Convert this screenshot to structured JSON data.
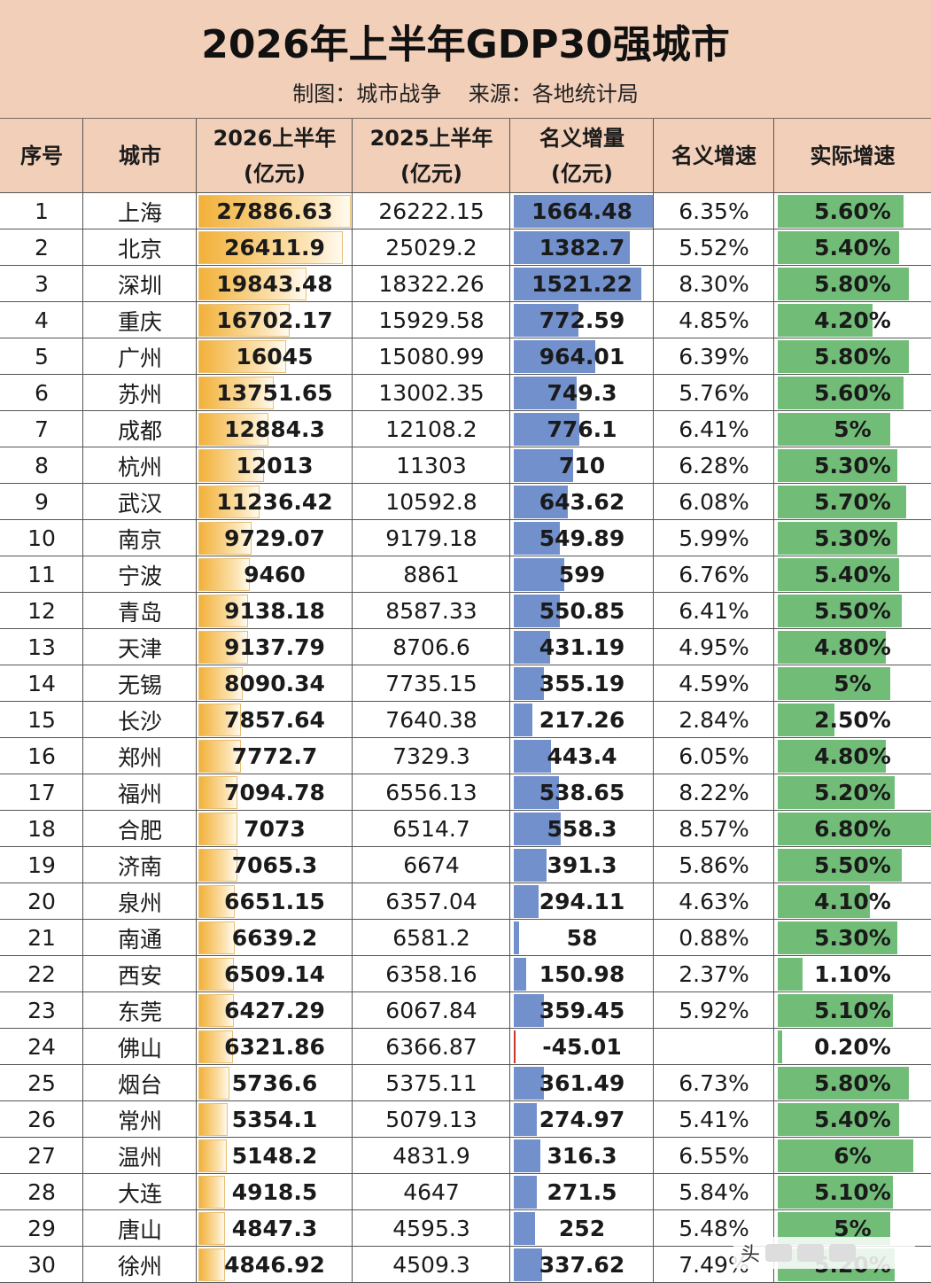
{
  "title": "2026年上半年GDP30强城市",
  "subtitle": "制图：城市战争    来源：各地统计局",
  "columns": [
    "序号",
    "城市",
    "2026上半年",
    "(亿元)",
    "2025上半年",
    "(亿元)",
    "名义增量",
    "(亿元)",
    "名义增速",
    "实际增速"
  ],
  "rows": [
    {
      "rank": "1",
      "city": "上海",
      "gdp2026": "27886.63",
      "gdp2025": "26222.15",
      "increase": "1664.48",
      "nominal": "6.35%",
      "real": "5.60%"
    },
    {
      "rank": "2",
      "city": "北京",
      "gdp2026": "26411.9",
      "gdp2025": "25029.2",
      "increase": "1382.7",
      "nominal": "5.52%",
      "real": "5.40%"
    },
    {
      "rank": "3",
      "city": "深圳",
      "gdp2026": "19843.48",
      "gdp2025": "18322.26",
      "increase": "1521.22",
      "nominal": "8.30%",
      "real": "5.80%"
    },
    {
      "rank": "4",
      "city": "重庆",
      "gdp2026": "16702.17",
      "gdp2025": "15929.58",
      "increase": "772.59",
      "nominal": "4.85%",
      "real": "4.20%"
    },
    {
      "rank": "5",
      "city": "广州",
      "gdp2026": "16045",
      "gdp2025": "15080.99",
      "increase": "964.01",
      "nominal": "6.39%",
      "real": "5.80%"
    },
    {
      "rank": "6",
      "city": "苏州",
      "gdp2026": "13751.65",
      "gdp2025": "13002.35",
      "increase": "749.3",
      "nominal": "5.76%",
      "real": "5.60%"
    },
    {
      "rank": "7",
      "city": "成都",
      "gdp2026": "12884.3",
      "gdp2025": "12108.2",
      "increase": "776.1",
      "nominal": "6.41%",
      "real": "5%"
    },
    {
      "rank": "8",
      "city": "杭州",
      "gdp2026": "12013",
      "gdp2025": "11303",
      "increase": "710",
      "nominal": "6.28%",
      "real": "5.30%"
    },
    {
      "rank": "9",
      "city": "武汉",
      "gdp2026": "11236.42",
      "gdp2025": "10592.8",
      "increase": "643.62",
      "nominal": "6.08%",
      "real": "5.70%"
    },
    {
      "rank": "10",
      "city": "南京",
      "gdp2026": "9729.07",
      "gdp2025": "9179.18",
      "increase": "549.89",
      "nominal": "5.99%",
      "real": "5.30%"
    },
    {
      "rank": "11",
      "city": "宁波",
      "gdp2026": "9460",
      "gdp2025": "8861",
      "increase": "599",
      "nominal": "6.76%",
      "real": "5.40%"
    },
    {
      "rank": "12",
      "city": "青岛",
      "gdp2026": "9138.18",
      "gdp2025": "8587.33",
      "increase": "550.85",
      "nominal": "6.41%",
      "real": "5.50%"
    },
    {
      "rank": "13",
      "city": "天津",
      "gdp2026": "9137.79",
      "gdp2025": "8706.6",
      "increase": "431.19",
      "nominal": "4.95%",
      "real": "4.80%"
    },
    {
      "rank": "14",
      "city": "无锡",
      "gdp2026": "8090.34",
      "gdp2025": "7735.15",
      "increase": "355.19",
      "nominal": "4.59%",
      "real": "5%"
    },
    {
      "rank": "15",
      "city": "长沙",
      "gdp2026": "7857.64",
      "gdp2025": "7640.38",
      "increase": "217.26",
      "nominal": "2.84%",
      "real": "2.50%"
    },
    {
      "rank": "16",
      "city": "郑州",
      "gdp2026": "7772.7",
      "gdp2025": "7329.3",
      "increase": "443.4",
      "nominal": "6.05%",
      "real": "4.80%"
    },
    {
      "rank": "17",
      "city": "福州",
      "gdp2026": "7094.78",
      "gdp2025": "6556.13",
      "increase": "538.65",
      "nominal": "8.22%",
      "real": "5.20%"
    },
    {
      "rank": "18",
      "city": "合肥",
      "gdp2026": "7073",
      "gdp2025": "6514.7",
      "increase": "558.3",
      "nominal": "8.57%",
      "real": "6.80%"
    },
    {
      "rank": "19",
      "city": "济南",
      "gdp2026": "7065.3",
      "gdp2025": "6674",
      "increase": "391.3",
      "nominal": "5.86%",
      "real": "5.50%"
    },
    {
      "rank": "20",
      "city": "泉州",
      "gdp2026": "6651.15",
      "gdp2025": "6357.04",
      "increase": "294.11",
      "nominal": "4.63%",
      "real": "4.10%"
    },
    {
      "rank": "21",
      "city": "南通",
      "gdp2026": "6639.2",
      "gdp2025": "6581.2",
      "increase": "58",
      "nominal": "0.88%",
      "real": "5.30%"
    },
    {
      "rank": "22",
      "city": "西安",
      "gdp2026": "6509.14",
      "gdp2025": "6358.16",
      "increase": "150.98",
      "nominal": "2.37%",
      "real": "1.10%"
    },
    {
      "rank": "23",
      "city": "东莞",
      "gdp2026": "6427.29",
      "gdp2025": "6067.84",
      "increase": "359.45",
      "nominal": "5.92%",
      "real": "5.10%"
    },
    {
      "rank": "24",
      "city": "佛山",
      "gdp2026": "6321.86",
      "gdp2025": "6366.87",
      "increase": "-45.01",
      "nominal": "",
      "real": "0.20%"
    },
    {
      "rank": "25",
      "city": "烟台",
      "gdp2026": "5736.6",
      "gdp2025": "5375.11",
      "increase": "361.49",
      "nominal": "6.73%",
      "real": "5.80%"
    },
    {
      "rank": "26",
      "city": "常州",
      "gdp2026": "5354.1",
      "gdp2025": "5079.13",
      "increase": "274.97",
      "nominal": "5.41%",
      "real": "5.40%"
    },
    {
      "rank": "27",
      "city": "温州",
      "gdp2026": "5148.2",
      "gdp2025": "4831.9",
      "increase": "316.3",
      "nominal": "6.55%",
      "real": "6%"
    },
    {
      "rank": "28",
      "city": "大连",
      "gdp2026": "4918.5",
      "gdp2025": "4647",
      "increase": "271.5",
      "nominal": "5.84%",
      "real": "5.10%"
    },
    {
      "rank": "29",
      "city": "唐山",
      "gdp2026": "4847.3",
      "gdp2025": "4595.3",
      "increase": "252",
      "nominal": "5.48%",
      "real": "5%"
    },
    {
      "rank": "30",
      "city": "徐州",
      "gdp2026": "4846.92",
      "gdp2025": "4509.3",
      "increase": "337.62",
      "nominal": "7.49%",
      "real": "5.20%"
    }
  ],
  "colors": {
    "header_bg": "#f2cfb9",
    "gdp_bar": "#f2b13a",
    "increase_bar": "#7190cc",
    "real_bar": "#71bd78",
    "negative_marker": "#c0392b"
  },
  "watermark": "头"
}
